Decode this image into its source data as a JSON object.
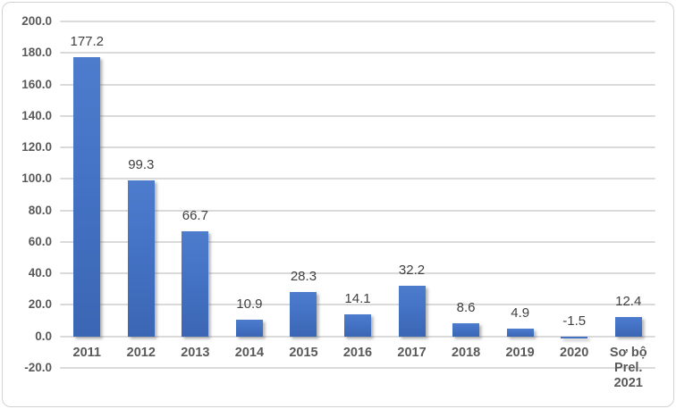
{
  "chart_data": {
    "type": "bar",
    "title": "",
    "xlabel": "",
    "ylabel": "",
    "categories": [
      "2011",
      "2012",
      "2013",
      "2014",
      "2015",
      "2016",
      "2017",
      "2018",
      "2019",
      "2020",
      "Sơ bộ\nPrel.\n2021"
    ],
    "values": [
      177.2,
      99.3,
      66.7,
      10.9,
      28.3,
      14.1,
      32.2,
      8.6,
      4.9,
      -1.5,
      12.4
    ],
    "data_labels": [
      "177.2",
      "99.3",
      "66.7",
      "10.9",
      "28.3",
      "14.1",
      "32.2",
      "8.6",
      "4.9",
      "-1.5",
      "12.4"
    ],
    "y_axis": {
      "min": -20,
      "max": 200,
      "step": 20,
      "tick_labels": [
        "200.0",
        "180.0",
        "160.0",
        "140.0",
        "120.0",
        "100.0",
        "80.0",
        "60.0",
        "40.0",
        "20.0",
        "0.0",
        "-20.0"
      ]
    },
    "grid": true,
    "legend_position": "none",
    "colors": {
      "bar_top": "#4e7ccd",
      "bar_mid": "#4472c4",
      "bar_bottom": "#3b66b4",
      "gridline": "#dadada",
      "axis_label": "#595959",
      "data_label": "#404040",
      "frame_border": "#d2d2d2",
      "background": "#ffffff"
    }
  }
}
